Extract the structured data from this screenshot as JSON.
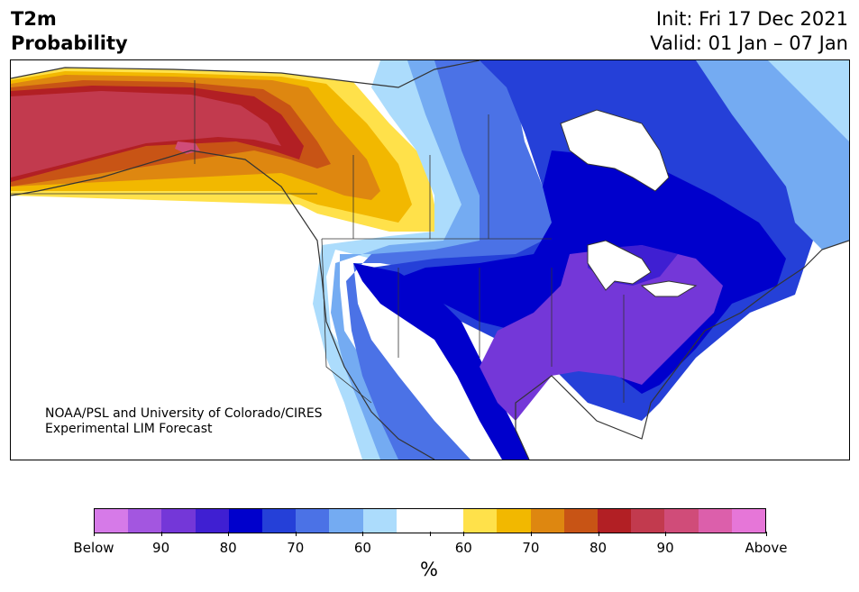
{
  "title": {
    "left_line1": "T2m",
    "left_line2": "Probability",
    "right_line1": "Init: Fri 17 Dec 2021",
    "right_line2": "Valid: 01 Jan – 07 Jan"
  },
  "credit": {
    "line1": "NOAA/PSL and University of Colorado/CIRES",
    "line2": "Experimental LIM Forecast"
  },
  "colorbar": {
    "units": "%",
    "colors": [
      "#d67ae8",
      "#a356e0",
      "#7437d8",
      "#3f1fd2",
      "#0000cc",
      "#2540d8",
      "#4b72e6",
      "#74abf2",
      "#acdcfc",
      "#ffffff",
      "#ffffff",
      "#ffe14a",
      "#f2b800",
      "#de8710",
      "#c85415",
      "#b21f24",
      "#c23a4e",
      "#d04c79",
      "#dc5fab",
      "#e676d8"
    ],
    "labels": [
      "Below",
      "90",
      "80",
      "70",
      "60",
      "60",
      "70",
      "80",
      "90",
      "Above"
    ]
  },
  "map": {
    "region": "North America",
    "colors": {
      "below_extreme": "#7437d8",
      "below_strong": "#0000cc",
      "below_mid": "#2540d8",
      "below_low": "#4b72e6",
      "below_weak": "#74abf2",
      "below_faint": "#acdcfc",
      "above_faint": "#ffe14a",
      "above_weak": "#f2b800",
      "above_low": "#de8710",
      "above_mid": "#c85415",
      "above_strong": "#b21f24",
      "above_extreme": "#c23a4e",
      "above_peak": "#d04c79",
      "water": "#ffffff",
      "outline": "#333333"
    }
  }
}
